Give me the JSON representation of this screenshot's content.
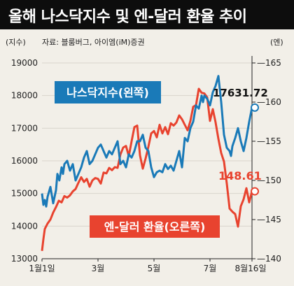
{
  "title": "올해 나스닥지수 및 엔-달러 환율 추이",
  "subtitle_left": "(지수)",
  "source": "자료: 블룸버그, 아이엠(iM)증권",
  "subtitle_right": "(엔)",
  "colors": {
    "nasdaq": "#1a7ab8",
    "yen": "#e8432f",
    "label_bg_nasdaq": "#1a7ab8",
    "label_bg_yen": "#e8432f",
    "background": "#f2efe8",
    "grid": "#d9d5cc"
  },
  "chart_data": {
    "type": "line",
    "title": "올해 나스닥지수 및 엔-달러 환율 추이",
    "x_ticks": [
      "1월1일",
      "3월",
      "5월",
      "7월",
      "8월16일"
    ],
    "y_left_ticks": [
      "19000",
      "18000",
      "17000",
      "16000",
      "15000",
      "14000",
      "13000"
    ],
    "y_right_ticks": [
      "165",
      "160",
      "155",
      "150",
      "145",
      "140"
    ],
    "y_left_range": [
      13000,
      19000
    ],
    "y_right_range": [
      140,
      165
    ],
    "series": [
      {
        "name": "나스닥지수(왼쪽)",
        "axis": "left",
        "end_label": "17631.72",
        "x": [
          0,
          0.05,
          0.1,
          0.15,
          0.2,
          0.3,
          0.4,
          0.5,
          0.55,
          0.62,
          0.7,
          0.75,
          0.8,
          0.9,
          1.0,
          1.1,
          1.2,
          1.3,
          1.4,
          1.5,
          1.6,
          1.7,
          1.8,
          1.9,
          2.0,
          2.1,
          2.2,
          2.3,
          2.4,
          2.5,
          2.6,
          2.7,
          2.8,
          2.9,
          3.0,
          3.1,
          3.2,
          3.3,
          3.4,
          3.5,
          3.6,
          3.7,
          3.8,
          3.9,
          4.0,
          4.1,
          4.2,
          4.3,
          4.4,
          4.5,
          4.6,
          4.7,
          4.8,
          4.9,
          5.0,
          5.1,
          5.2,
          5.3,
          5.4,
          5.5,
          5.6,
          5.7,
          5.75,
          5.8,
          5.9,
          6.0,
          6.1,
          6.2,
          6.3,
          6.4,
          6.5,
          6.6,
          6.7,
          6.75,
          6.8,
          6.9,
          7.0,
          7.1,
          7.2,
          7.3,
          7.4,
          7.5
        ],
        "values": [
          15000,
          14650,
          14800,
          14600,
          14900,
          15200,
          14700,
          15100,
          15600,
          15400,
          15800,
          15600,
          15900,
          16000,
          15700,
          15900,
          15400,
          15600,
          15800,
          16100,
          16300,
          15900,
          16000,
          16200,
          16400,
          16500,
          16300,
          16100,
          16300,
          16200,
          16400,
          16600,
          15900,
          16000,
          15800,
          16200,
          16100,
          16300,
          16600,
          16600,
          16800,
          16400,
          16300,
          15800,
          15500,
          15650,
          15700,
          15650,
          15900,
          15750,
          15850,
          15700,
          16000,
          16300,
          15800,
          16700,
          16600,
          17000,
          17200,
          17700,
          17600,
          18000,
          17800,
          18000,
          17900,
          17700,
          18100,
          18300,
          18600,
          17800,
          16800,
          16400,
          16300,
          16150,
          16450,
          16700,
          17000,
          16600,
          16300,
          16700,
          17200,
          17631.72
        ]
      },
      {
        "name": "엔-달러 환율(오른쪽)",
        "axis": "right",
        "end_label": "148.61",
        "x": [
          0,
          0.05,
          0.1,
          0.2,
          0.3,
          0.4,
          0.5,
          0.6,
          0.7,
          0.8,
          0.9,
          1.0,
          1.1,
          1.2,
          1.3,
          1.4,
          1.5,
          1.6,
          1.7,
          1.8,
          1.9,
          2.0,
          2.1,
          2.2,
          2.3,
          2.4,
          2.5,
          2.6,
          2.7,
          2.8,
          2.9,
          3.0,
          3.1,
          3.2,
          3.3,
          3.4,
          3.5,
          3.6,
          3.7,
          3.8,
          3.9,
          4.0,
          4.1,
          4.2,
          4.3,
          4.4,
          4.5,
          4.6,
          4.7,
          4.8,
          4.9,
          5.0,
          5.1,
          5.2,
          5.3,
          5.4,
          5.5,
          5.6,
          5.7,
          5.8,
          5.9,
          6.0,
          6.1,
          6.2,
          6.3,
          6.4,
          6.5,
          6.6,
          6.7,
          6.8,
          6.9,
          7.0,
          7.1,
          7.2,
          7.3,
          7.4,
          7.5
        ],
        "values": [
          141.0,
          142.5,
          143.8,
          144.5,
          145.0,
          145.9,
          146.6,
          147.4,
          147.2,
          148.0,
          147.8,
          148.1,
          148.6,
          148.9,
          149.7,
          150.4,
          149.8,
          150.2,
          149.2,
          150.0,
          150.3,
          150.2,
          149.6,
          151.0,
          150.9,
          151.6,
          151.3,
          151.7,
          151.6,
          153.3,
          154.2,
          154.4,
          153.1,
          155.0,
          156.8,
          157.0,
          153.2,
          151.5,
          152.8,
          154.3,
          156.0,
          156.3,
          155.5,
          157.1,
          156.0,
          156.8,
          155.9,
          157.3,
          157.0,
          157.4,
          158.3,
          157.8,
          157.1,
          156.4,
          157.6,
          159.4,
          159.6,
          161.7,
          161.2,
          161.1,
          160.6,
          157.6,
          159.1,
          157.4,
          155.3,
          153.5,
          152.4,
          149.6,
          146.4,
          146.0,
          145.7,
          144.1,
          146.7,
          147.6,
          149.0,
          147.2,
          148.61
        ]
      }
    ],
    "series_labels": {
      "nasdaq": "나스닥지수(왼쪽)",
      "yen": "엔-달러 환율(오른쪽)"
    },
    "grid": true
  }
}
